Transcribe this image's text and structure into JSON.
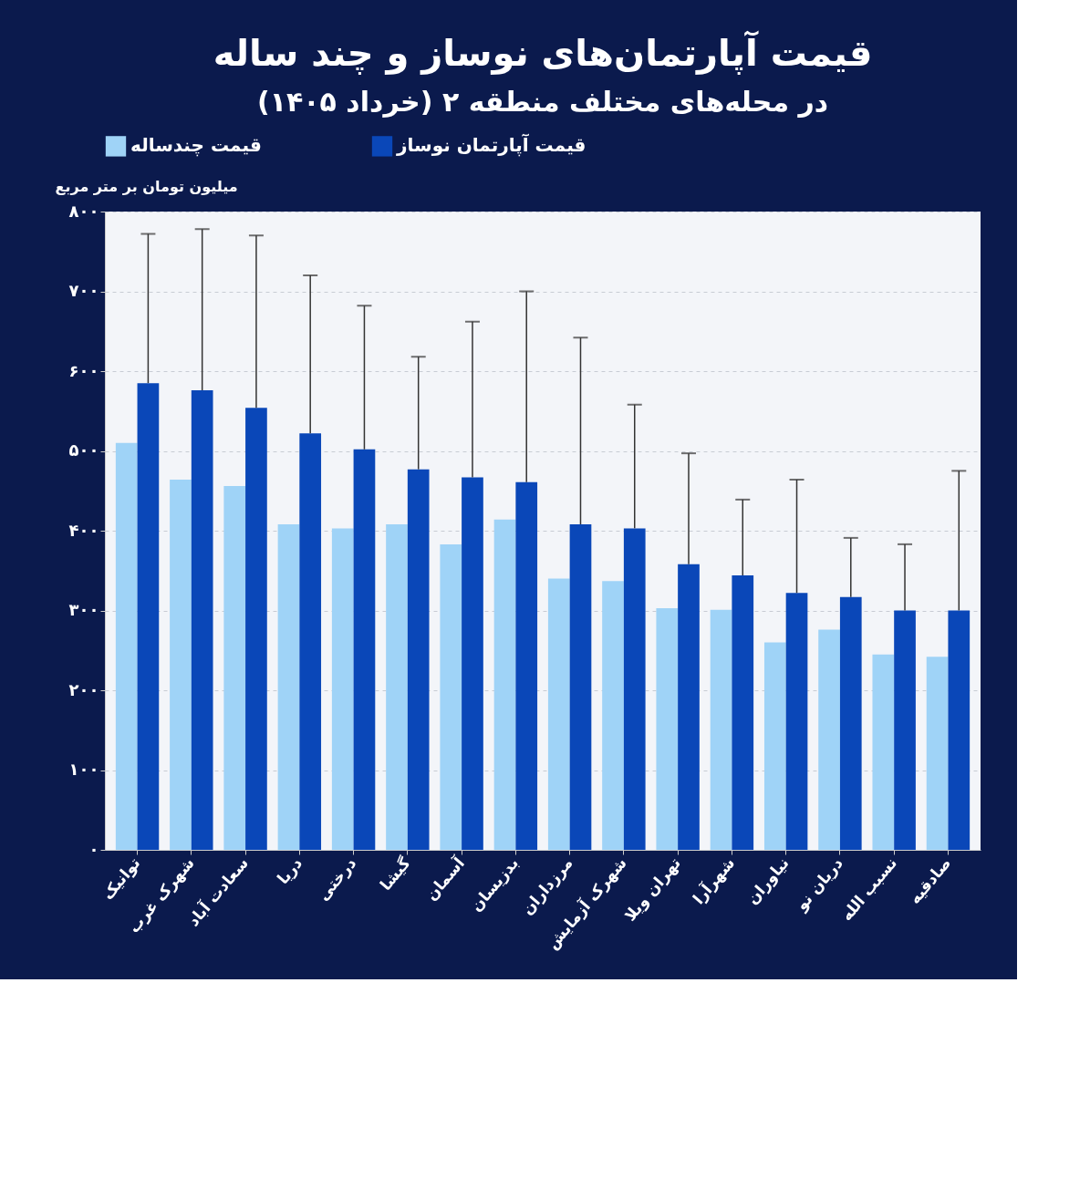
{
  "chart_data": {
    "type": "bar",
    "title": "قیمت آپارتمان‌های نوساز و چند ساله",
    "subtitle": "در محله‌های مختلف منطقه ۲ (خرداد ۱۴۰۵)",
    "ylabel": "میلیون تومان بر متر مربع",
    "categories": [
      "توانیک",
      "شهرک غرب",
      "سعادت آباد",
      "دریا",
      "درختی",
      "گیشا",
      "آسمان",
      "بدزیسان",
      "مرزداران",
      "شهرک آزمایش",
      "تهران ویلا",
      "شهرآرا",
      "نیاوران",
      "دریان نو",
      "نسبب الله",
      "صادقیه"
    ],
    "series": [
      {
        "name": "قیمت چندساله",
        "color": "#9fd3f7",
        "values": [
          510,
          464,
          456,
          408,
          403,
          408,
          383,
          414,
          340,
          337,
          303,
          301,
          260,
          276,
          245,
          242
        ]
      },
      {
        "name": "قیمت آپارتمان نوساز",
        "color": "#0a47b8",
        "values": [
          585,
          576,
          554,
          522,
          502,
          477,
          467,
          461,
          408,
          403,
          358,
          344,
          322,
          317,
          300,
          300
        ],
        "errors": [
          [
            585,
            772
          ],
          [
            576,
            778
          ],
          [
            554,
            770
          ],
          [
            522,
            720
          ],
          [
            502,
            682
          ],
          [
            477,
            618
          ],
          [
            467,
            662
          ],
          [
            461,
            700
          ],
          [
            408,
            642
          ],
          [
            403,
            558
          ],
          [
            358,
            497
          ],
          [
            344,
            439
          ],
          [
            322,
            464
          ],
          [
            317,
            391
          ],
          [
            300,
            383
          ],
          [
            300,
            475
          ]
        ]
      }
    ],
    "ylim": [
      0,
      800
    ],
    "yticks": [
      {
        "value": 0,
        "label": "۰"
      },
      {
        "value": 100,
        "label": "۱۰۰"
      },
      {
        "value": 200,
        "label": "۲۰۰"
      },
      {
        "value": 300,
        "label": "۳۰۰"
      },
      {
        "value": 400,
        "label": "۴۰۰"
      },
      {
        "value": 500,
        "label": "۵۰۰"
      },
      {
        "value": 600,
        "label": "۶۰۰"
      },
      {
        "value": 700,
        "label": "۷۰۰"
      },
      {
        "value": 800,
        "label": "۸۰۰"
      }
    ],
    "grid": "y",
    "legend": "top"
  }
}
